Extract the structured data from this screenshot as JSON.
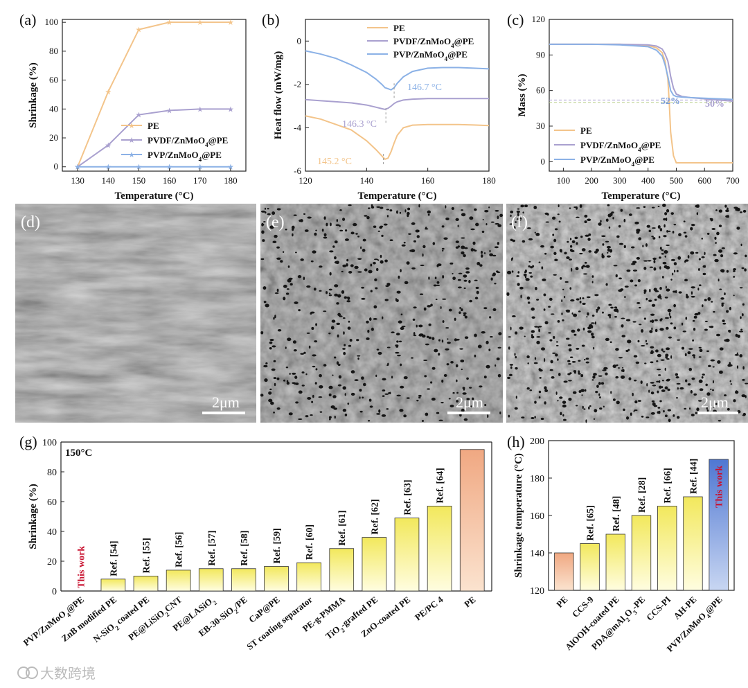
{
  "watermark": "大数跨境",
  "colors": {
    "pe": "#f3c48a",
    "pvdf": "#a9a0cf",
    "pvp": "#8bb1e6",
    "red": "#c8102e",
    "barYellow": "#f4ec6a",
    "barPE": "#f2b896",
    "barBlue": "#5f84d6"
  },
  "chart_data": [
    {
      "panel": "(a)",
      "type": "line",
      "xlabel": "Temperature (°C)",
      "ylabel": "Shrinkage (%)",
      "xlim": [
        125,
        185
      ],
      "ylim": [
        -3,
        102
      ],
      "xticks": [
        130,
        140,
        150,
        160,
        170,
        180
      ],
      "yticks": [
        0,
        20,
        40,
        60,
        80,
        100
      ],
      "x": [
        130,
        140,
        150,
        160,
        170,
        180
      ],
      "series": [
        {
          "name": "PE",
          "values": [
            0,
            52,
            95,
            100,
            100,
            100
          ]
        },
        {
          "name": "PVDF/ZnMoO4@PE",
          "values": [
            0,
            15,
            36,
            39,
            40,
            40
          ]
        },
        {
          "name": "PVP/ZnMoO4@PE",
          "values": [
            0,
            0,
            0,
            0,
            0,
            0
          ]
        }
      ]
    },
    {
      "panel": "(b)",
      "type": "line",
      "xlabel": "Temperature (°C)",
      "ylabel": "Heat flow (mW/mg)",
      "xlim": [
        120,
        180
      ],
      "ylim": [
        -6,
        1
      ],
      "xticks": [
        120,
        140,
        160,
        180
      ],
      "yticks": [
        0,
        -2,
        -4,
        -6
      ],
      "x": [
        120,
        125,
        130,
        135,
        140,
        143,
        145,
        146,
        147,
        148,
        149,
        150,
        152,
        155,
        160,
        165,
        170,
        175,
        180
      ],
      "series": [
        {
          "name": "PE",
          "values": [
            -3.45,
            -3.6,
            -3.85,
            -4.1,
            -4.6,
            -5.0,
            -5.3,
            -5.45,
            -5.4,
            -5.1,
            -4.7,
            -4.35,
            -4.0,
            -3.88,
            -3.85,
            -3.85,
            -3.85,
            -3.87,
            -3.9
          ]
        },
        {
          "name": "PVDF/ZnMoO4@PE",
          "values": [
            -2.7,
            -2.75,
            -2.8,
            -2.85,
            -2.95,
            -3.05,
            -3.12,
            -3.15,
            -3.1,
            -3.0,
            -2.88,
            -2.8,
            -2.72,
            -2.68,
            -2.65,
            -2.65,
            -2.65,
            -2.65,
            -2.65
          ]
        },
        {
          "name": "PVP/ZnMoO4@PE",
          "values": [
            -0.45,
            -0.6,
            -0.8,
            -1.1,
            -1.45,
            -1.75,
            -2.0,
            -2.15,
            -2.2,
            -2.25,
            -2.15,
            -1.95,
            -1.65,
            -1.4,
            -1.25,
            -1.22,
            -1.22,
            -1.25,
            -1.28
          ]
        }
      ],
      "annotations": [
        "146.7 °C",
        "146.3 °C",
        "145.2 °C"
      ]
    },
    {
      "panel": "(c)",
      "type": "line",
      "xlabel": "Temperature (°C)",
      "ylabel": "Mass (%)",
      "xlim": [
        50,
        700
      ],
      "ylim": [
        -8,
        120
      ],
      "xticks": [
        100,
        200,
        300,
        400,
        500,
        600,
        700
      ],
      "yticks": [
        0,
        30,
        60,
        90,
        120
      ],
      "x": [
        50,
        100,
        200,
        300,
        400,
        430,
        450,
        460,
        470,
        475,
        480,
        490,
        500,
        520,
        550,
        600,
        650,
        700
      ],
      "series": [
        {
          "name": "PE",
          "values": [
            99,
            99,
            99,
            99,
            98,
            96,
            92,
            85,
            70,
            50,
            25,
            5,
            -1,
            -1,
            -1,
            -1,
            -1,
            -1
          ]
        },
        {
          "name": "PVDF/ZnMoO4@PE",
          "values": [
            99,
            99,
            99,
            99,
            98.5,
            97.5,
            95,
            91,
            85,
            79,
            72,
            62,
            57,
            55,
            54,
            53,
            52,
            51
          ]
        },
        {
          "name": "PVP/ZnMoO4@PE",
          "values": [
            99,
            99,
            99,
            98.5,
            97,
            94,
            89,
            82,
            72,
            66,
            60,
            56,
            55,
            54.5,
            54,
            53.5,
            53,
            52.5
          ]
        }
      ],
      "annotations": [
        "52%",
        "50%"
      ]
    },
    {
      "panel": "(g)",
      "type": "bar",
      "ylabel": "Shrinkage (%)",
      "ylim": [
        0,
        100
      ],
      "yticks": [
        0,
        20,
        40,
        60,
        80,
        100
      ],
      "note": "150°C",
      "categories": [
        "PVP/ZnMoO4@PE",
        "ZnB modified PE",
        "N-SiO2 coated PE",
        "PE@LiSiO2CNT",
        "PE@LASiO2",
        "EB-30-SiO2/PE",
        "CaP@PE",
        "ST coating separator",
        "PE-g-PMMA",
        "TiO2-grafted PE",
        "ZnO-coated PE",
        "PE/PC 4",
        "PE"
      ],
      "values": [
        0,
        8,
        10,
        14,
        15,
        15,
        16.5,
        19,
        28.5,
        36,
        49,
        57,
        95
      ],
      "bar_labels": [
        "This work",
        "Ref. [54]",
        "Ref. [55]",
        "Ref. [56]",
        "Ref. [57]",
        "Ref. [58]",
        "Ref. [59]",
        "Ref. [60]",
        "Ref. [61]",
        "Ref. [62]",
        "Ref. [63]",
        "Ref. [64]",
        ""
      ]
    },
    {
      "panel": "(h)",
      "type": "bar",
      "ylabel": "Shrinkage temperature (°C)",
      "ylim": [
        120,
        200
      ],
      "yticks": [
        120,
        140,
        160,
        180,
        200
      ],
      "categories": [
        "PE",
        "CCS-9",
        "AlOOH-coated PE",
        "PDA@mAl2O3-PE",
        "CCS-PI",
        "AH-PE",
        "PVP/ZnMoO4@PE"
      ],
      "values": [
        140,
        145,
        150,
        160,
        165,
        170,
        190
      ],
      "bar_labels": [
        "",
        "Ref. [65]",
        "Ref. [48]",
        "Ref. [28]",
        "Ref. [66]",
        "Ref. [44]",
        "This work"
      ]
    }
  ],
  "images": [
    {
      "panel": "(d)",
      "scale": "2μm"
    },
    {
      "panel": "(e)",
      "scale": "2μm"
    },
    {
      "panel": "(f)",
      "scale": "2μm"
    }
  ]
}
